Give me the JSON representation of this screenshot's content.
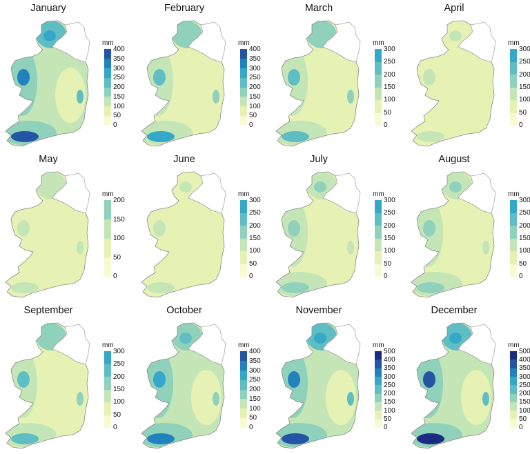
{
  "unit": "mm",
  "palette": [
    {
      "max": 50,
      "color": "#f8fbd2"
    },
    {
      "max": 100,
      "color": "#e5f2b4"
    },
    {
      "max": 150,
      "color": "#c4e6b7"
    },
    {
      "max": 200,
      "color": "#8fd1bb"
    },
    {
      "max": 250,
      "color": "#5fbec3"
    },
    {
      "max": 300,
      "color": "#35a7c9"
    },
    {
      "max": 350,
      "color": "#2182bd"
    },
    {
      "max": 400,
      "color": "#2355a4"
    },
    {
      "max": 500,
      "color": "#1b2c80"
    }
  ],
  "months": [
    {
      "name": "January",
      "ticks": [
        0,
        50,
        100,
        150,
        200,
        250,
        300,
        350,
        400
      ],
      "rain": {
        "base": 110,
        "east": 80,
        "west": 190,
        "mayo": 320,
        "kerry": 380,
        "donegal": 260,
        "wicklow": 220
      }
    },
    {
      "name": "February",
      "ticks": [
        0,
        50,
        100,
        150,
        200,
        250,
        300,
        350,
        400
      ],
      "rain": {
        "base": 80,
        "east": 70,
        "west": 130,
        "mayo": 230,
        "kerry": 270,
        "donegal": 190,
        "wicklow": 160
      }
    },
    {
      "name": "March",
      "ticks": [
        0,
        50,
        100,
        150,
        200,
        250,
        300
      ],
      "rain": {
        "base": 80,
        "east": 70,
        "west": 130,
        "mayo": 210,
        "kerry": 240,
        "donegal": 180,
        "wicklow": 160
      }
    },
    {
      "name": "April",
      "ticks": [
        0,
        50,
        100,
        150,
        200,
        250,
        300
      ],
      "rain": {
        "base": 60,
        "east": 55,
        "west": 80,
        "mayo": 110,
        "kerry": 130,
        "donegal": 110,
        "wicklow": 90
      }
    },
    {
      "name": "May",
      "ticks": [
        0,
        50,
        100,
        150,
        200
      ],
      "rain": {
        "base": 70,
        "east": 65,
        "west": 90,
        "mayo": 120,
        "kerry": 130,
        "donegal": 120,
        "wicklow": 110
      }
    },
    {
      "name": "June",
      "ticks": [
        0,
        50,
        100,
        150,
        200,
        250,
        300
      ],
      "rain": {
        "base": 70,
        "east": 65,
        "west": 80,
        "mayo": 110,
        "kerry": 120,
        "donegal": 110,
        "wicklow": 90
      }
    },
    {
      "name": "July",
      "ticks": [
        0,
        50,
        100,
        150,
        200,
        250,
        300
      ],
      "rain": {
        "base": 75,
        "east": 70,
        "west": 110,
        "mayo": 160,
        "kerry": 170,
        "donegal": 160,
        "wicklow": 120
      }
    },
    {
      "name": "August",
      "ticks": [
        0,
        50,
        100,
        150,
        200,
        250,
        300
      ],
      "rain": {
        "base": 85,
        "east": 80,
        "west": 120,
        "mayo": 170,
        "kerry": 180,
        "donegal": 170,
        "wicklow": 130
      }
    },
    {
      "name": "September",
      "ticks": [
        0,
        50,
        100,
        150,
        200,
        250,
        300
      ],
      "rain": {
        "base": 85,
        "east": 75,
        "west": 120,
        "mayo": 210,
        "kerry": 230,
        "donegal": 190,
        "wicklow": 160
      }
    },
    {
      "name": "October",
      "ticks": [
        0,
        50,
        100,
        150,
        200,
        250,
        300,
        350,
        400
      ],
      "rain": {
        "base": 110,
        "east": 90,
        "west": 160,
        "mayo": 260,
        "kerry": 320,
        "donegal": 240,
        "wicklow": 200
      }
    },
    {
      "name": "November",
      "ticks": [
        0,
        50,
        100,
        150,
        200,
        250,
        300,
        350,
        400,
        500
      ],
      "rain": {
        "base": 110,
        "east": 90,
        "west": 170,
        "mayo": 320,
        "kerry": 360,
        "donegal": 260,
        "wicklow": 230
      }
    },
    {
      "name": "December",
      "ticks": [
        0,
        50,
        100,
        150,
        200,
        250,
        300,
        350,
        400,
        500
      ],
      "rain": {
        "base": 120,
        "east": 100,
        "west": 190,
        "mayo": 360,
        "kerry": 420,
        "donegal": 280,
        "wicklow": 240
      }
    }
  ]
}
